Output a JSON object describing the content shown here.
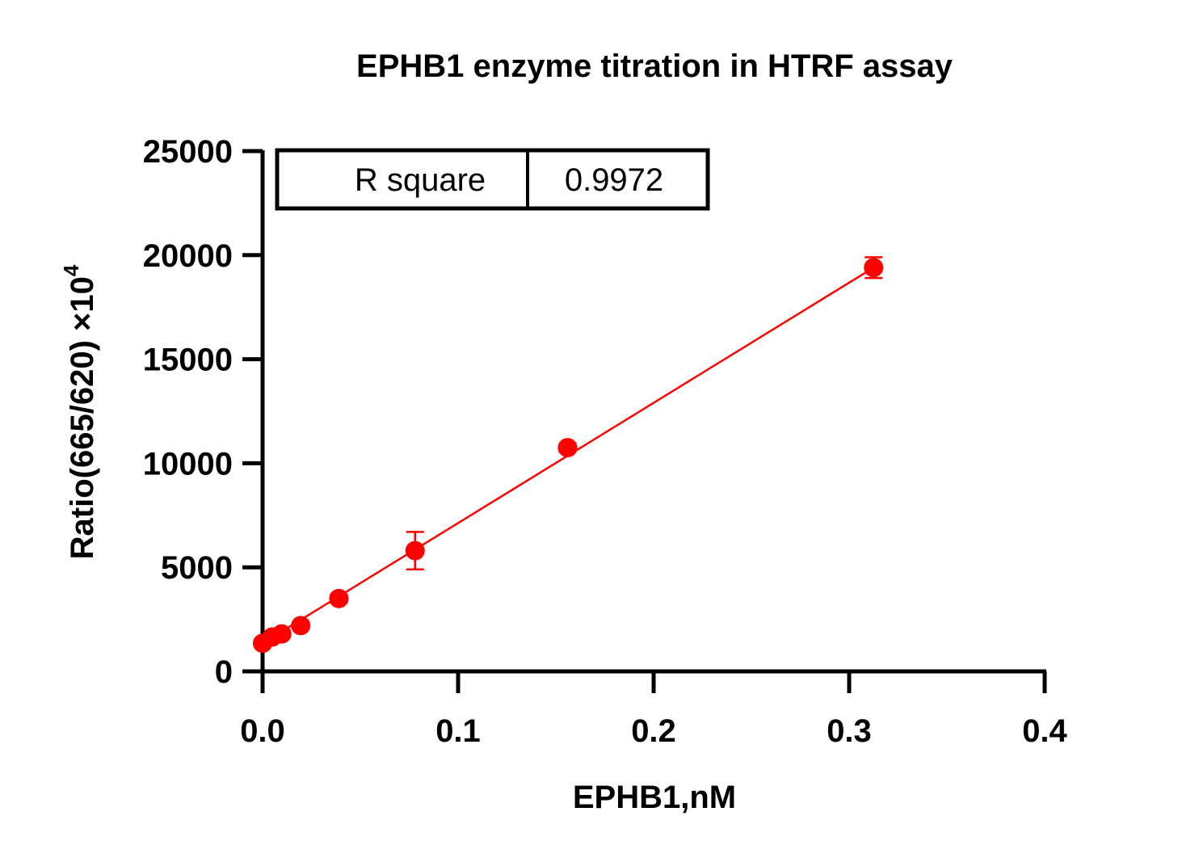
{
  "chart_data": {
    "type": "scatter",
    "title": "EPHB1 enzyme titration in HTRF assay",
    "xlabel": "EPHB1,nM",
    "ylabel": "Ratio(665/620) ×10",
    "ylabel_exponent": "4",
    "xlim": [
      0,
      0.4
    ],
    "ylim": [
      0,
      25000
    ],
    "x_ticks": [
      "0.0",
      "0.1",
      "0.2",
      "0.3",
      "0.4"
    ],
    "y_ticks": [
      "0",
      "5000",
      "10000",
      "15000",
      "20000",
      "25000"
    ],
    "grid": false,
    "series": [
      {
        "x": [
          0,
          0.0049,
          0.0098,
          0.0195,
          0.039,
          0.078,
          0.156,
          0.3125
        ],
        "y": [
          1350,
          1650,
          1800,
          2200,
          3500,
          5800,
          10750,
          19400
        ],
        "y_err": [
          150,
          150,
          150,
          150,
          200,
          900,
          200,
          500
        ],
        "color": "#ff0000"
      }
    ],
    "fit_line": {
      "type": "linear",
      "x": [
        0,
        0.3125
      ],
      "y": [
        1350,
        19400
      ],
      "color": "#ff0000"
    },
    "stats_table": {
      "label": "R square",
      "value": "0.9972"
    }
  }
}
